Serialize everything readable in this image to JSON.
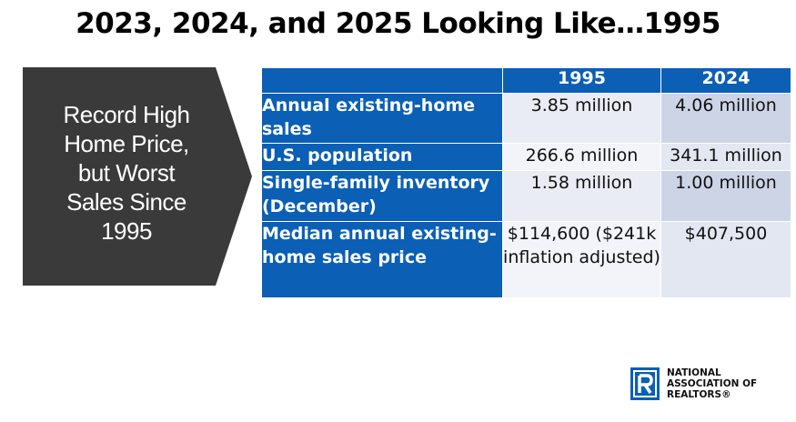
{
  "title": "2023, 2024, and 2025 Looking Like…1995",
  "callout": {
    "lines": [
      "Record High",
      "Home Price,",
      "but Worst",
      "Sales Since",
      "1995"
    ]
  },
  "table": {
    "headers": [
      "",
      "1995",
      "2024"
    ],
    "rows": [
      {
        "label": "Annual existing-home sales",
        "y1995": "3.85 million",
        "y2024": "4.06 million"
      },
      {
        "label": "U.S. population",
        "y1995": "266.6 million",
        "y2024": "341.1 million"
      },
      {
        "label": "Single-family inventory (December)",
        "y1995": "1.58 million",
        "y2024": "1.00 million"
      },
      {
        "label": "Median annual existing-home sales price",
        "y1995": "$114,600 ($241k inflation adjusted)",
        "y2024": "$407,500"
      }
    ]
  },
  "logo": {
    "lines": [
      "NATIONAL",
      "ASSOCIATION OF",
      "REALTORS®"
    ],
    "colors": {
      "brand": "#0b5fb5"
    }
  },
  "colors": {
    "header_blue": "#0b5fb5",
    "arrow_gray": "#3a3a3a",
    "cell_light": "#e9ecf4",
    "cell_dark": "#cdd4e6"
  }
}
